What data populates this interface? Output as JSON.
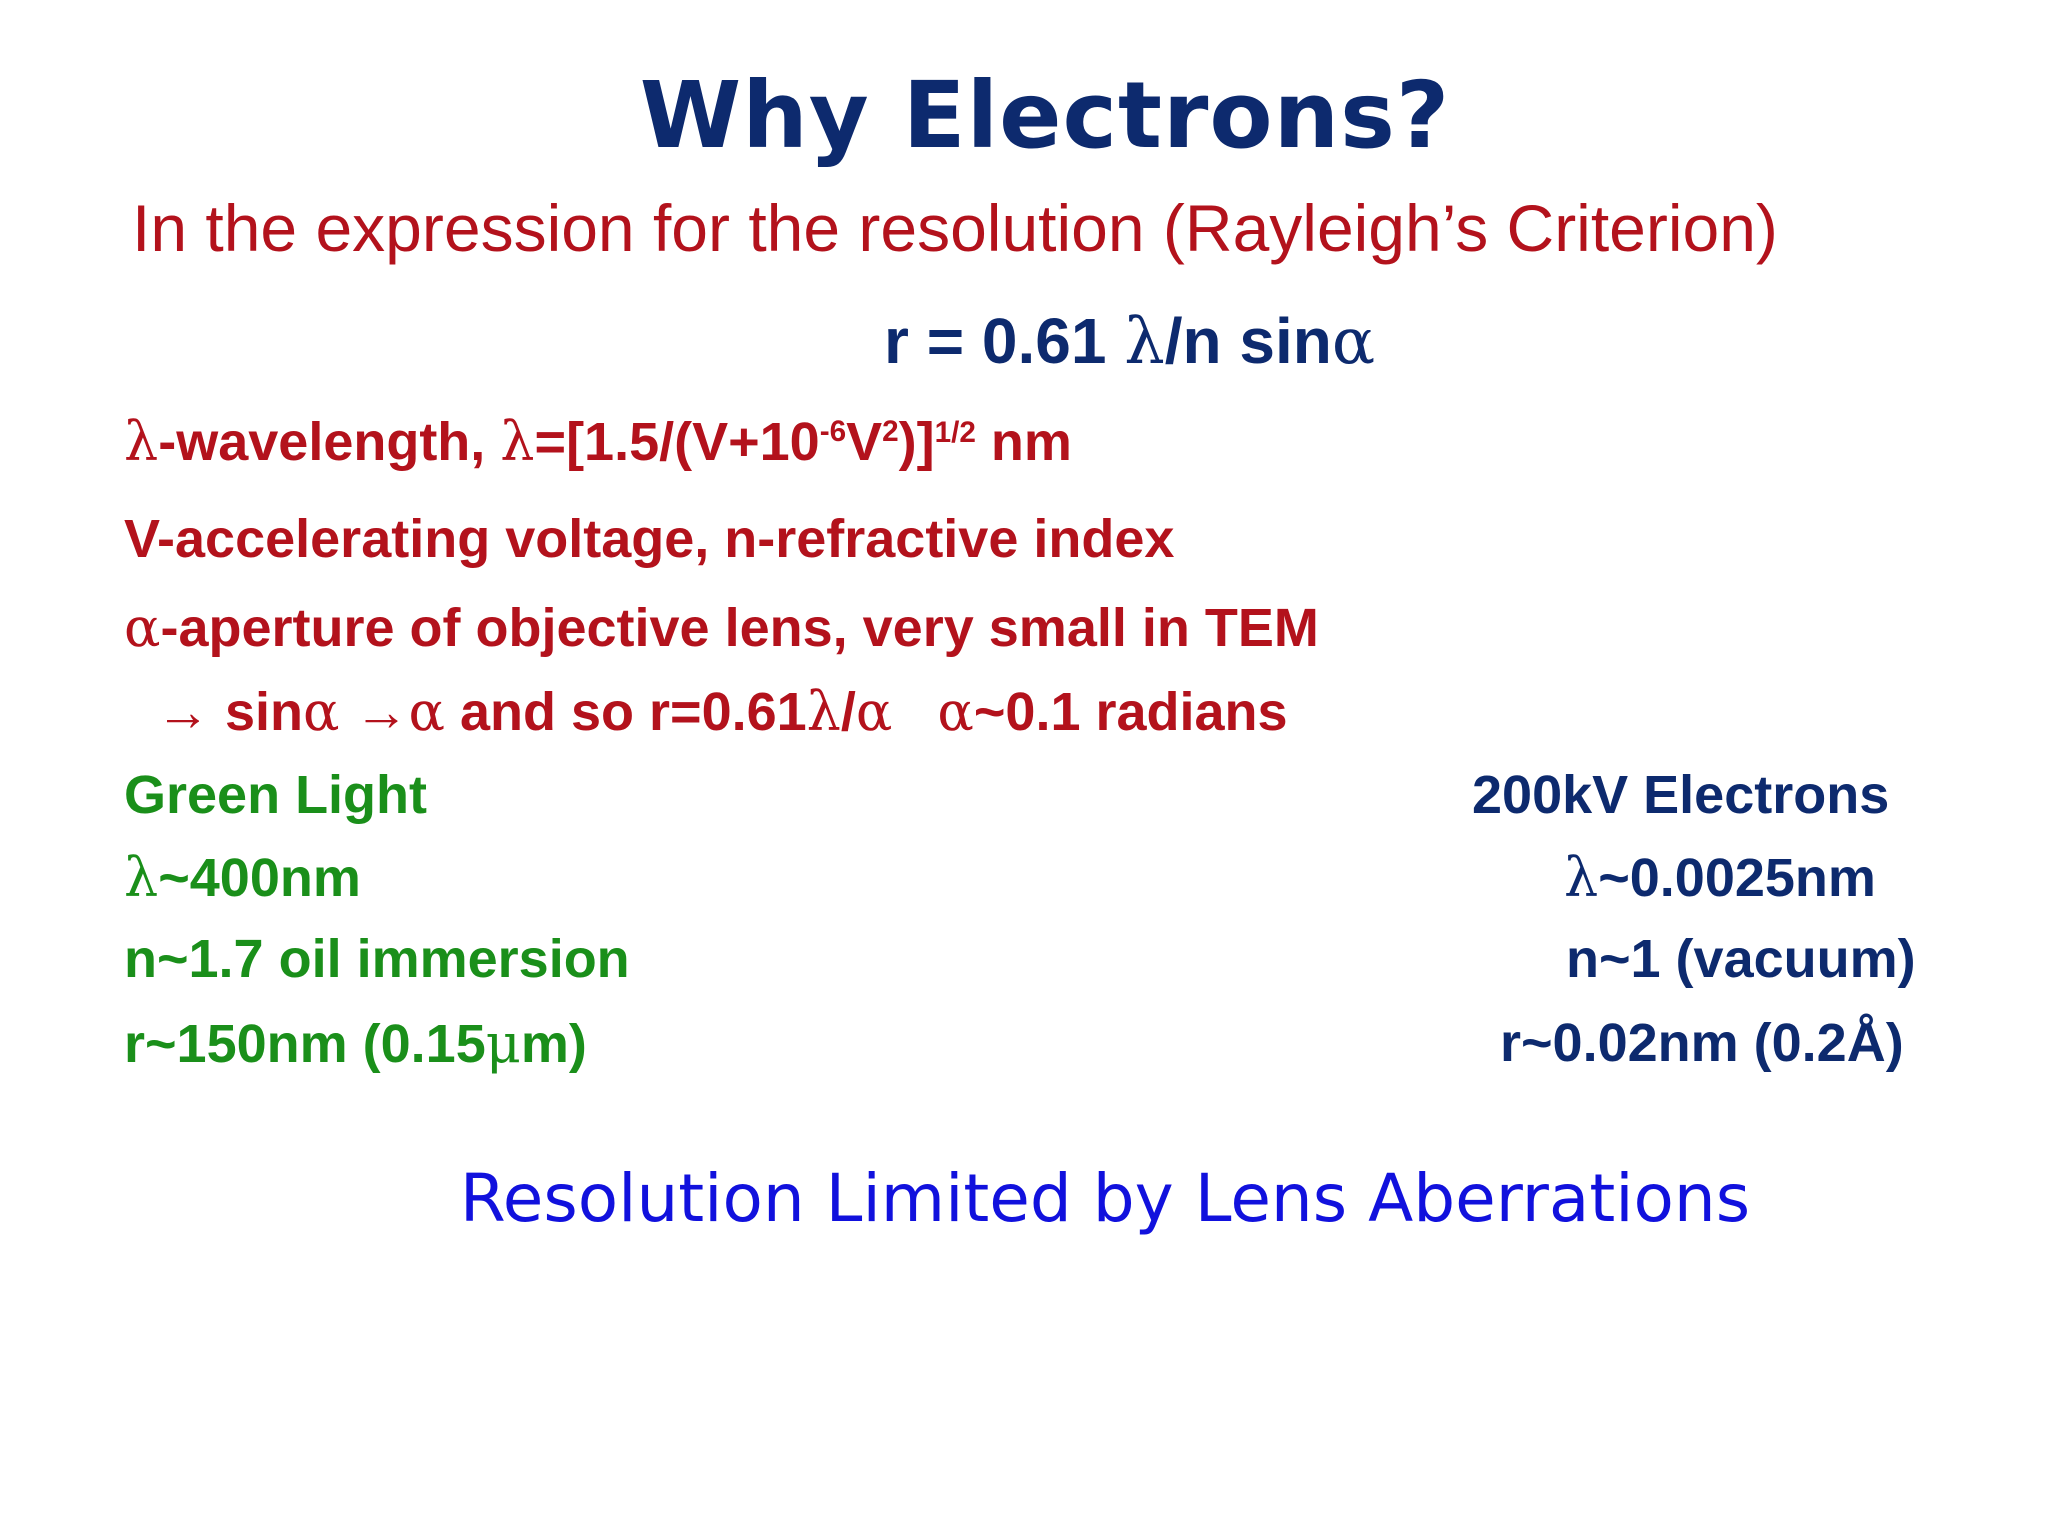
{
  "title": "Why Electrons?",
  "subtitle": "In the expression for the resolution (Rayleigh’s Criterion)",
  "formula": {
    "prefix": "r = 0.61 ",
    "lambda": "λ",
    "middle": "/n sin",
    "alpha": "α"
  },
  "definitions": {
    "wavelength": {
      "symbol": "λ",
      "label": "-wavelength, ",
      "symbol2": "λ",
      "eq_start": "=[1.5/(V+10",
      "exp1": "-6",
      "eq_mid": "V",
      "exp2": "2",
      "eq_end": ")]",
      "exp3": "1/2",
      "unit": " nm"
    },
    "voltage": "V-accelerating voltage, n-refractive index",
    "aperture": {
      "symbol": "α",
      "text": "-aperture of objective lens, very small in TEM"
    },
    "approx": {
      "arrow1": "→",
      "sin_text": " sin",
      "alpha1": "α",
      "arrow2": " →",
      "alpha2": "α",
      "and_so": " and so r=0.61",
      "lambda": "λ",
      "slash": "/",
      "alpha3": "α",
      "gap": "   ",
      "alpha4": "α",
      "radians": "~0.1 radians"
    }
  },
  "comparison": {
    "light": {
      "heading": "Green Light",
      "wavelength_symbol": "λ",
      "wavelength": "~400nm",
      "index": "n~1.7 oil immersion",
      "resolution_prefix": "r~150nm (0.15",
      "mu": "μ",
      "resolution_suffix": "m)"
    },
    "electrons": {
      "heading": "200kV Electrons",
      "wavelength_symbol": "λ",
      "wavelength": "~0.0025nm",
      "index": "n~1 (vacuum)",
      "resolution": "r~0.02nm (0.2Å)"
    }
  },
  "footer": "Resolution Limited by Lens Aberrations",
  "colors": {
    "title": "#0d2a6e",
    "red_text": "#b3121c",
    "green_text": "#1a8f1a",
    "navy_text": "#0d2a6e",
    "footer": "#1111dd"
  }
}
